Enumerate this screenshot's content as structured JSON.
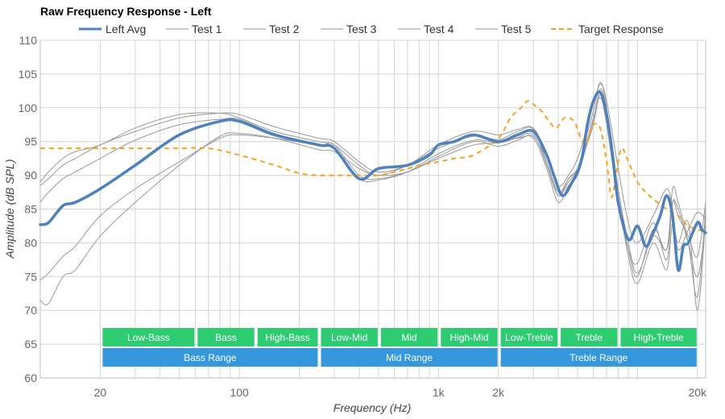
{
  "chart_data": {
    "type": "line",
    "title": "Raw Frequency Response - Left",
    "xlabel": "Frequency (Hz)",
    "ylabel": "Amplitude (dB SPL)",
    "x_scale": "log",
    "xlim": [
      10,
      22000
    ],
    "ylim": [
      60,
      110
    ],
    "y_ticks": [
      60,
      65,
      70,
      75,
      80,
      85,
      90,
      95,
      100,
      105,
      110
    ],
    "x_tick_labels": [
      {
        "value": 20,
        "label": "20"
      },
      {
        "value": 100,
        "label": "100"
      },
      {
        "value": 1000,
        "label": "1k"
      },
      {
        "value": 2000,
        "label": "2k"
      },
      {
        "value": 20000,
        "label": "20k"
      }
    ],
    "legend": [
      "Left Avg",
      "Test 1",
      "Test 2",
      "Test 3",
      "Test 4",
      "Test 5",
      "Target Response"
    ],
    "colors": {
      "avg": "#4f81bd",
      "test": "#9a9a9a",
      "target": "#f5a31a",
      "band_green": "#2ecc71",
      "band_blue": "#3498db",
      "grid": "#d4d4d4"
    },
    "series": [
      {
        "name": "Left Avg",
        "style": "thick",
        "x": [
          10,
          11,
          13,
          15,
          20,
          30,
          50,
          80,
          100,
          150,
          250,
          300,
          400,
          500,
          700,
          900,
          1000,
          1200,
          1500,
          2000,
          2500,
          3000,
          3500,
          3800,
          4200,
          4700,
          5000,
          5300,
          5600,
          6000,
          6500,
          7000,
          7500,
          8000,
          9000,
          10000,
          11000,
          12000,
          13000,
          14000,
          15000,
          16000,
          17000,
          18000,
          20000,
          21000,
          22000
        ],
        "values": [
          82.7,
          83,
          85.5,
          86,
          88,
          91.5,
          96,
          98,
          98,
          96,
          94.5,
          94,
          89.5,
          91,
          91.5,
          93,
          94.5,
          95,
          96,
          95,
          96,
          96.5,
          93,
          90,
          87,
          89,
          90.5,
          93,
          97.5,
          101,
          102.3,
          99,
          93,
          86,
          80.5,
          82.5,
          79.5,
          81.5,
          84,
          87,
          84,
          76,
          79.5,
          80,
          83,
          82,
          81.5
        ]
      },
      {
        "name": "Test 1",
        "style": "thin",
        "x": [
          10,
          11,
          13,
          15,
          20,
          30,
          50,
          80,
          100,
          150,
          250,
          300,
          400,
          500,
          700,
          1000,
          1500,
          2000,
          2500,
          3000,
          3500,
          4000,
          4500,
          5000,
          5500,
          6000,
          6500,
          7000,
          8000,
          9000,
          10000,
          12000,
          14000,
          15000,
          16000,
          18000,
          20000,
          22000
        ],
        "values": [
          88.5,
          89.5,
          91.5,
          92.5,
          94.5,
          96.5,
          98.5,
          99.2,
          99,
          97.2,
          95.5,
          95,
          92,
          90.5,
          91.5,
          94.5,
          96.5,
          96,
          96.8,
          97,
          93,
          88.5,
          90,
          92.5,
          96.5,
          100.5,
          103.5,
          101,
          91,
          83,
          80,
          84,
          88,
          85,
          79,
          82,
          84.5,
          83.5
        ]
      },
      {
        "name": "Test 2",
        "style": "thin",
        "x": [
          10,
          11,
          13,
          15,
          20,
          30,
          50,
          80,
          100,
          150,
          250,
          300,
          400,
          500,
          700,
          1000,
          1500,
          2000,
          2500,
          3000,
          3500,
          4000,
          4500,
          5000,
          5500,
          6000,
          6500,
          7000,
          8000,
          9000,
          10000,
          12000,
          14000,
          15000,
          16000,
          18000,
          20000,
          22000
        ],
        "values": [
          89,
          90.5,
          92.5,
          93.5,
          94.5,
          97,
          99,
          99.2,
          98.5,
          96.5,
          95,
          94.5,
          91.5,
          90,
          91.5,
          94,
          95.8,
          95.3,
          96.5,
          96.8,
          92,
          87.5,
          89.5,
          91,
          95.5,
          99.5,
          103.8,
          100,
          87,
          78,
          74,
          80,
          76,
          83,
          80,
          83,
          70,
          84
        ]
      },
      {
        "name": "Test 3",
        "style": "thin",
        "x": [
          10,
          11,
          13,
          15,
          20,
          30,
          50,
          80,
          100,
          150,
          250,
          300,
          400,
          500,
          700,
          1000,
          1500,
          2000,
          2500,
          3000,
          3500,
          4000,
          4500,
          5000,
          5500,
          6000,
          6500,
          7000,
          8000,
          9000,
          10000,
          12000,
          14000,
          15000,
          16000,
          18000,
          20000,
          22000
        ],
        "values": [
          74.5,
          75.5,
          78,
          79.5,
          84,
          88,
          92,
          95.5,
          96,
          95.5,
          94.5,
          94.5,
          90,
          89.5,
          90.5,
          92.5,
          94.5,
          94.8,
          95.5,
          95.5,
          91,
          86,
          88.5,
          90,
          94,
          97.5,
          102,
          98.5,
          87,
          79,
          75,
          82,
          79,
          88,
          86,
          80,
          72,
          85
        ]
      },
      {
        "name": "Test 4",
        "style": "thin",
        "x": [
          10,
          11,
          13,
          15,
          20,
          30,
          50,
          80,
          100,
          150,
          250,
          300,
          400,
          500,
          700,
          1000,
          1500,
          2000,
          2500,
          3000,
          3500,
          4000,
          4500,
          5000,
          5500,
          6000,
          6500,
          7000,
          8000,
          9000,
          10000,
          12000,
          14000,
          15000,
          16000,
          18000,
          20000,
          22000
        ],
        "values": [
          71.5,
          71,
          75,
          76,
          81,
          86,
          91.5,
          95.8,
          96.2,
          95.5,
          93.8,
          93.5,
          91,
          90,
          90.5,
          92.8,
          95,
          94.3,
          95.2,
          95.8,
          92,
          87,
          89.5,
          91,
          94.5,
          98.5,
          101.5,
          97.5,
          86,
          79,
          77,
          83,
          77.5,
          86,
          84,
          81,
          78,
          86
        ]
      },
      {
        "name": "Test 5",
        "style": "thin",
        "x": [
          10,
          11,
          13,
          15,
          20,
          30,
          50,
          80,
          100,
          150,
          250,
          300,
          400,
          500,
          700,
          1000,
          1500,
          2000,
          2500,
          3000,
          3500,
          4000,
          4500,
          5000,
          5500,
          6000,
          6500,
          7000,
          8000,
          9000,
          10000,
          12000,
          14000,
          15000,
          16000,
          18000,
          20000,
          22000
        ],
        "values": [
          86,
          87.5,
          89.5,
          90.5,
          92.5,
          95.2,
          97.5,
          98.3,
          98.3,
          96.2,
          94.5,
          94,
          89.5,
          89.3,
          90.5,
          93.2,
          95.2,
          94.8,
          95.6,
          96,
          91.5,
          87,
          89,
          90.8,
          94.2,
          98.2,
          102.8,
          99.5,
          88,
          80,
          75.5,
          81,
          79,
          86,
          85,
          80,
          75,
          82.5
        ]
      },
      {
        "name": "Target Response",
        "style": "dashed",
        "x": [
          10,
          15,
          20,
          30,
          50,
          70,
          100,
          150,
          200,
          250,
          300,
          400,
          500,
          600,
          700,
          800,
          1000,
          1200,
          1500,
          2000,
          2300,
          2600,
          2800,
          3000,
          3300,
          3600,
          3900,
          4300,
          4800,
          5200,
          5500,
          5700,
          6000,
          6500,
          7000,
          7300,
          7500,
          7800,
          8300,
          9000,
          10000,
          11000,
          12000,
          14000,
          16000,
          18000,
          20000,
          22000
        ],
        "values": [
          94,
          94,
          94,
          94,
          94,
          94,
          93,
          91.5,
          90.3,
          90,
          90,
          90,
          90,
          90.5,
          91,
          91.5,
          92,
          92.5,
          93,
          95.5,
          98.5,
          100,
          101,
          100.5,
          99.5,
          98,
          97,
          98.5,
          98,
          95.5,
          94.5,
          96,
          97.5,
          97,
          92,
          87.5,
          87,
          90,
          94,
          92,
          89,
          87.5,
          86.5,
          85,
          84,
          82.5,
          82,
          81.5
        ]
      }
    ],
    "bands": [
      {
        "label": "Low-Bass",
        "from": 20,
        "to": 60,
        "row": 1,
        "color": "green"
      },
      {
        "label": "Bass",
        "from": 60,
        "to": 120,
        "row": 1,
        "color": "green"
      },
      {
        "label": "High-Bass",
        "from": 120,
        "to": 250,
        "row": 1,
        "color": "green"
      },
      {
        "label": "Low-Mid",
        "from": 250,
        "to": 500,
        "row": 1,
        "color": "green"
      },
      {
        "label": "Mid",
        "from": 500,
        "to": 1000,
        "row": 1,
        "color": "green"
      },
      {
        "label": "High-Mid",
        "from": 1000,
        "to": 2000,
        "row": 1,
        "color": "green"
      },
      {
        "label": "Low-Treble",
        "from": 2000,
        "to": 4000,
        "row": 1,
        "color": "green"
      },
      {
        "label": "Treble",
        "from": 4000,
        "to": 8000,
        "row": 1,
        "color": "green"
      },
      {
        "label": "High-Treble",
        "from": 8000,
        "to": 20000,
        "row": 1,
        "color": "green"
      },
      {
        "label": "Bass Range",
        "from": 20,
        "to": 250,
        "row": 2,
        "color": "blue"
      },
      {
        "label": "Mid Range",
        "from": 250,
        "to": 2000,
        "row": 2,
        "color": "blue"
      },
      {
        "label": "Treble Range",
        "from": 2000,
        "to": 20000,
        "row": 2,
        "color": "blue"
      }
    ]
  }
}
